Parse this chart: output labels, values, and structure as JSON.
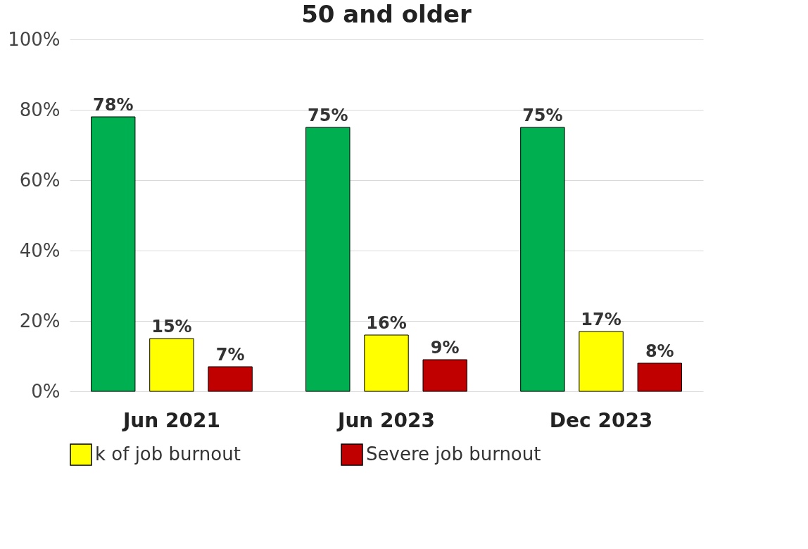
{
  "chart_data": {
    "type": "bar",
    "title": "50 and older",
    "categories": [
      "Jun 2021",
      "Jun 2023",
      "Dec 2023"
    ],
    "series": [
      {
        "color": "#00b050",
        "values": [
          78,
          75,
          75
        ],
        "value_labels": [
          "78%",
          "75%",
          "75%"
        ]
      },
      {
        "name": "k of job burnout",
        "color": "#ffff00",
        "values": [
          15,
          16,
          17
        ],
        "value_labels": [
          "15%",
          "16%",
          "17%"
        ]
      },
      {
        "name": "Severe job burnout",
        "color": "#c00000",
        "values": [
          7,
          9,
          8
        ],
        "value_labels": [
          "7%",
          "9%",
          "8%"
        ]
      }
    ],
    "ylim": [
      0,
      100
    ],
    "yticks": [
      {
        "value": 0,
        "label": "0%"
      },
      {
        "value": 20,
        "label": "20%"
      },
      {
        "value": 40,
        "label": "40%"
      },
      {
        "value": 60,
        "label": "60%"
      },
      {
        "value": 80,
        "label": "80%"
      },
      {
        "value": 100,
        "label": "100%"
      }
    ],
    "grid": "y",
    "legend": "bottom"
  }
}
